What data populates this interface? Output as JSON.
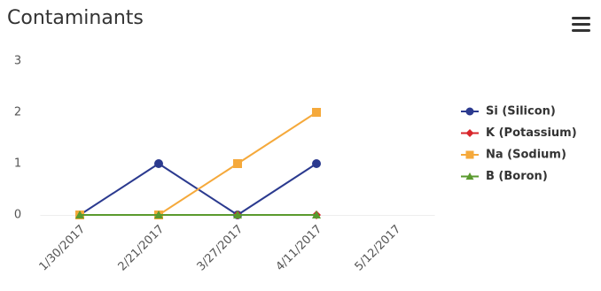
{
  "chart_data": {
    "type": "line",
    "title": "Contaminants",
    "categories": [
      "1/30/2017",
      "2/21/2017",
      "3/27/2017",
      "4/11/2017",
      "5/12/2017"
    ],
    "series": [
      {
        "name": "Si (Silicon)",
        "color": "#2b3a8f",
        "marker": "circle",
        "values": [
          0,
          1,
          0,
          1,
          null
        ]
      },
      {
        "name": "K (Potassium)",
        "color": "#d8262b",
        "marker": "diamond",
        "values": [
          0,
          0,
          0,
          0,
          null
        ]
      },
      {
        "name": "Na (Sodium)",
        "color": "#f5a93b",
        "marker": "square",
        "values": [
          0,
          0,
          1,
          2,
          null
        ]
      },
      {
        "name": "B (Boron)",
        "color": "#5a9a2e",
        "marker": "triangle",
        "values": [
          0,
          0,
          0,
          0,
          null
        ]
      }
    ],
    "ylim": [
      0,
      3
    ],
    "yticks": [
      0,
      1,
      2,
      3
    ],
    "grid": false,
    "legend": "right"
  }
}
